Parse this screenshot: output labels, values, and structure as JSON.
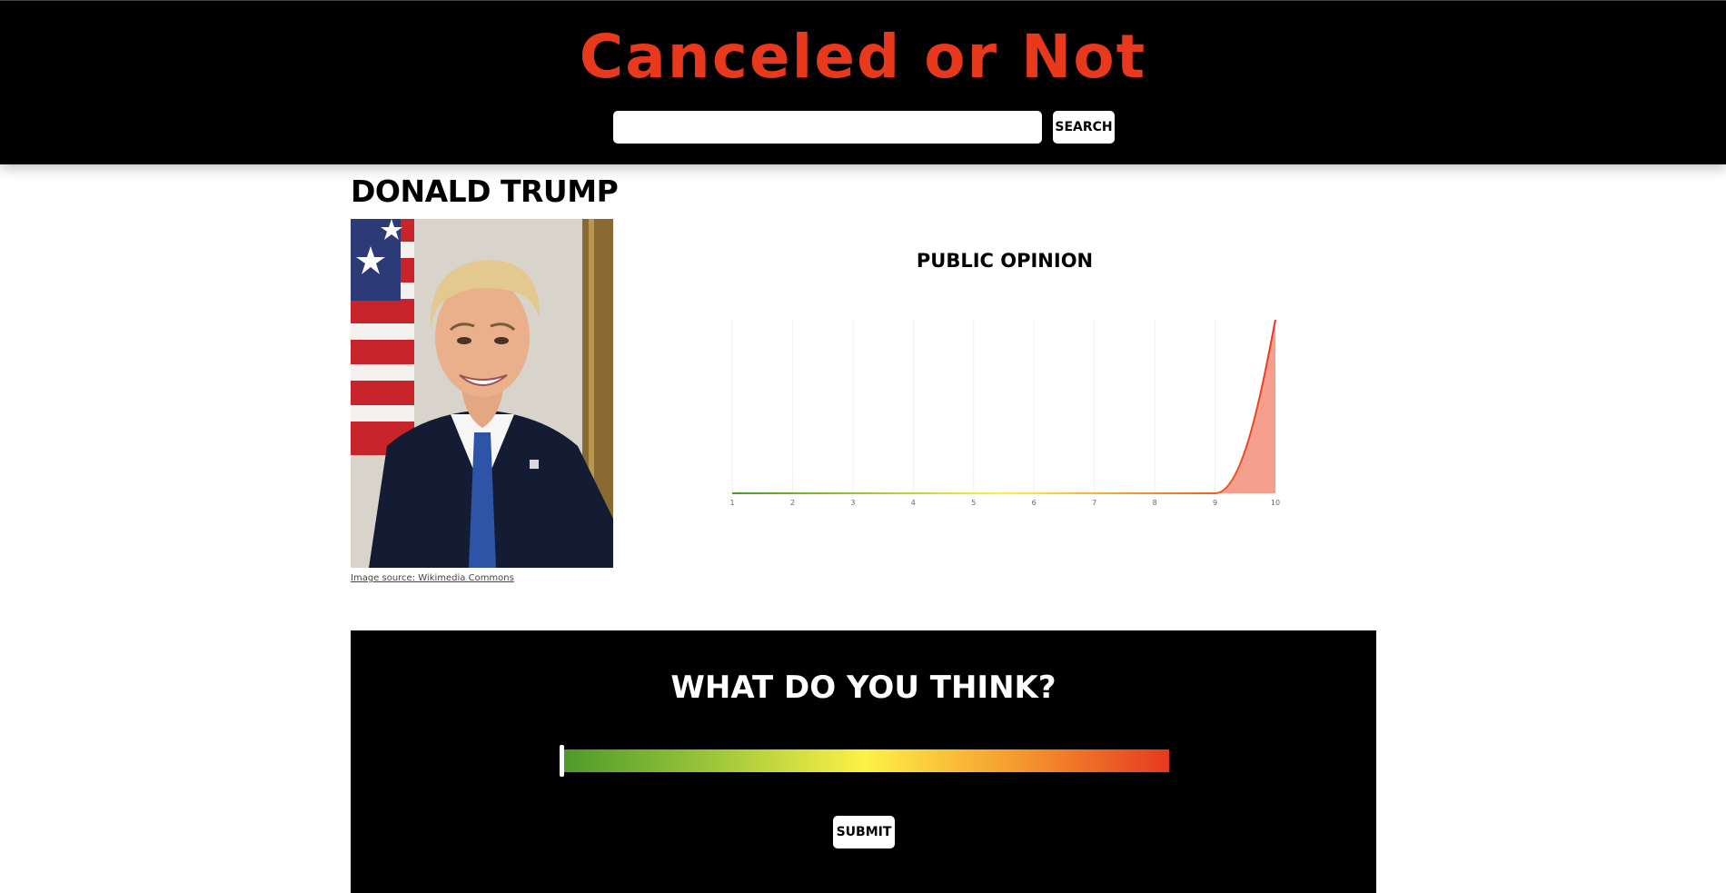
{
  "site": {
    "logo_text": "Canceled or Not",
    "search_placeholder": "",
    "search_value": "",
    "search_button_label": "SEARCH"
  },
  "person": {
    "name": "DONALD TRUMP",
    "image_source_label": "Image source: Wikimedia Commons"
  },
  "chart_data": {
    "type": "area",
    "title": "PUBLIC OPINION",
    "xlabel": "",
    "ylabel": "",
    "x": [
      1,
      2,
      3,
      4,
      5,
      6,
      7,
      8,
      9,
      10
    ],
    "tick_labels": [
      "1",
      "2",
      "3",
      "4",
      "5",
      "6",
      "7",
      "8",
      "9",
      "10"
    ],
    "series": [
      {
        "values": [
          0,
          0,
          0,
          0,
          0,
          0,
          0,
          0,
          0,
          1
        ]
      }
    ],
    "xlim": [
      1,
      10
    ],
    "ylim": [
      0,
      1
    ],
    "grid": "vertical",
    "line_gradient": [
      "#4a9a2a",
      "#fdf146",
      "#e6391f"
    ],
    "fill_color": "#f5a08e"
  },
  "vote": {
    "heading": "WHAT DO YOU THINK?",
    "slider_value": 1,
    "slider_min": 1,
    "slider_max": 10,
    "submit_label": "SUBMIT"
  },
  "colors": {
    "brand_red": "#e8391d",
    "header_bg": "#000000"
  }
}
